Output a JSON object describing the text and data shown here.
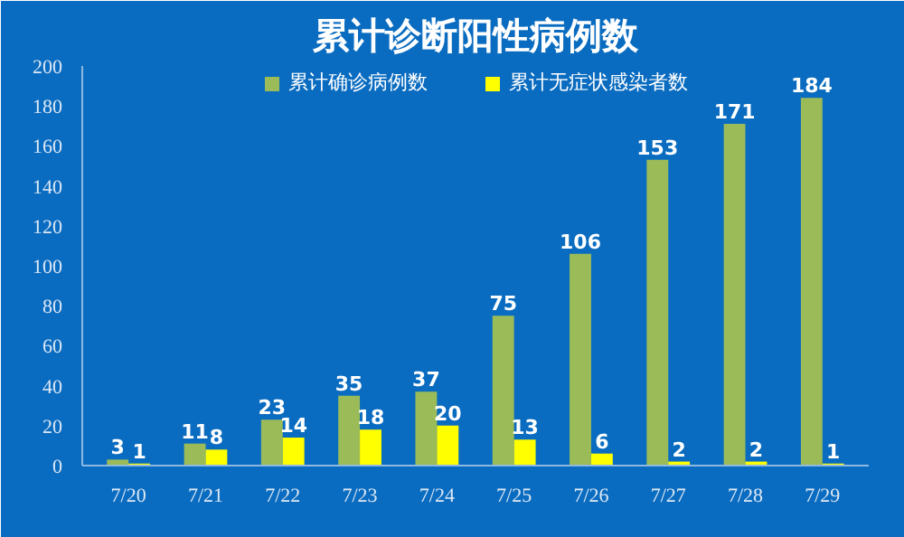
{
  "chart_data": {
    "type": "bar",
    "title": "累计诊断阳性病例数",
    "categories": [
      "7/20",
      "7/21",
      "7/22",
      "7/23",
      "7/24",
      "7/25",
      "7/26",
      "7/27",
      "7/28",
      "7/29"
    ],
    "series": [
      {
        "name": "累计确诊病例数",
        "color": "#9bbb59",
        "values": [
          3,
          11,
          23,
          35,
          37,
          75,
          106,
          153,
          171,
          184
        ]
      },
      {
        "name": "累计无症状感染者数",
        "color": "#ffff00",
        "values": [
          1,
          8,
          14,
          18,
          20,
          13,
          6,
          2,
          2,
          1
        ]
      }
    ],
    "ylim": [
      0,
      200
    ],
    "yticks": [
      0,
      20,
      40,
      60,
      80,
      100,
      120,
      140,
      160,
      180,
      200
    ],
    "data_labels": true,
    "grid": false,
    "legend": "top"
  }
}
